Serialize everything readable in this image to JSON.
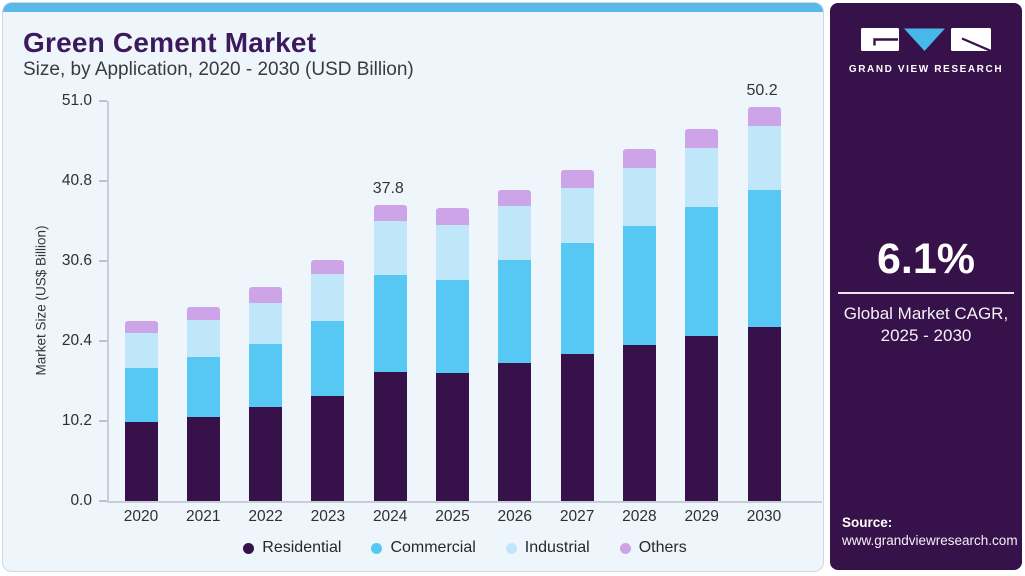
{
  "page": {
    "title": "Green Cement Market",
    "subtitle": "Size, by Application, 2020 - 2030 (USD Billion)"
  },
  "colors": {
    "accent_strip_blue": "#58b8e8",
    "panel_background": "#eff6fb",
    "brand_purple": "#371149",
    "title_purple": "#3b1b5e",
    "logo_triangle_blue": "#48b7e9"
  },
  "chart_data": {
    "type": "bar",
    "stacked": true,
    "title": "Green Cement Market",
    "subtitle": "Size, by Application, 2020 - 2030 (USD Billion)",
    "xlabel": "",
    "ylabel": "Market Size (US$ Billion)",
    "categories": [
      "2020",
      "2021",
      "2022",
      "2023",
      "2024",
      "2025",
      "2026",
      "2027",
      "2028",
      "2029",
      "2030"
    ],
    "series": [
      {
        "name": "Residential",
        "color": "#371149",
        "values": [
          10.1,
          10.7,
          12.0,
          13.4,
          16.4,
          16.3,
          17.6,
          18.8,
          19.9,
          21.0,
          22.2
        ]
      },
      {
        "name": "Commercial",
        "color": "#57c8f4",
        "values": [
          6.8,
          7.7,
          8.0,
          9.6,
          12.4,
          11.9,
          13.1,
          14.1,
          15.2,
          16.5,
          17.5
        ]
      },
      {
        "name": "Industrial",
        "color": "#c0e6fa",
        "values": [
          4.5,
          4.7,
          5.3,
          5.9,
          6.9,
          7.0,
          6.9,
          7.0,
          7.4,
          7.5,
          8.1
        ]
      },
      {
        "name": "Others",
        "color": "#cda4e7",
        "values": [
          1.6,
          1.7,
          2.0,
          1.8,
          2.1,
          2.1,
          2.1,
          2.3,
          2.4,
          2.4,
          2.4
        ]
      }
    ],
    "totals": [
      23.0,
      24.8,
      27.3,
      30.7,
      37.8,
      37.3,
      39.7,
      42.2,
      44.9,
      47.4,
      50.2
    ],
    "data_labels": [
      {
        "category": "2024",
        "text": "37.8"
      },
      {
        "category": "2030",
        "text": "50.2"
      }
    ],
    "yticks": [
      "0.0",
      "10.2",
      "20.4",
      "30.6",
      "40.8",
      "51.0"
    ],
    "ylim": [
      0,
      51.0
    ],
    "grid": false,
    "legend_position": "bottom",
    "legend": [
      "Residential",
      "Commercial",
      "Industrial",
      "Others"
    ]
  },
  "sidebar": {
    "brand": "GRAND VIEW RESEARCH",
    "cagr_value": "6.1%",
    "cagr_label_line1": "Global Market CAGR,",
    "cagr_label_line2": "2025 - 2030",
    "source_label": "Source:",
    "source_url": "www.grandviewresearch.com"
  }
}
